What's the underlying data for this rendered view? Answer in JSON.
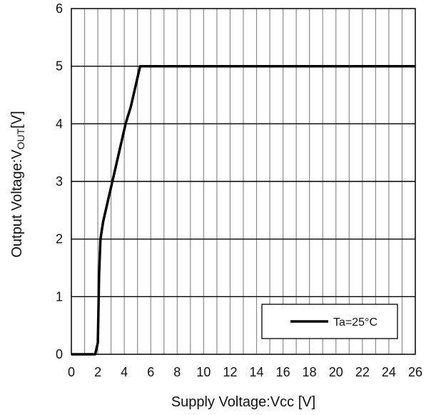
{
  "chart_data": {
    "type": "line",
    "xlabel": "Supply Voltage:Vcc [V]",
    "ylabel_parts": {
      "main": "Output Voltage:V",
      "sub": "OUT",
      "unit": "[V]"
    },
    "xlim": [
      0,
      26
    ],
    "ylim": [
      0,
      6
    ],
    "x_ticks": [
      0,
      2,
      4,
      6,
      8,
      10,
      12,
      14,
      16,
      18,
      20,
      22,
      24,
      26
    ],
    "y_ticks": [
      0,
      1,
      2,
      3,
      4,
      5,
      6
    ],
    "x_grid_step": 1,
    "y_grid_step": 1,
    "grid": true,
    "legend_position": "bottom-right",
    "series": [
      {
        "name": "Ta=25°C",
        "color": "#000000",
        "x": [
          0,
          1.8,
          2.0,
          2.1,
          2.2,
          2.4,
          2.8,
          3.3,
          3.7,
          4.0,
          4.1,
          4.5,
          4.9,
          5.2,
          26
        ],
        "y": [
          0,
          0,
          0.2,
          1.4,
          2.0,
          2.3,
          2.7,
          3.2,
          3.6,
          3.9,
          4.0,
          4.3,
          4.7,
          5.0,
          5.0
        ]
      }
    ]
  }
}
